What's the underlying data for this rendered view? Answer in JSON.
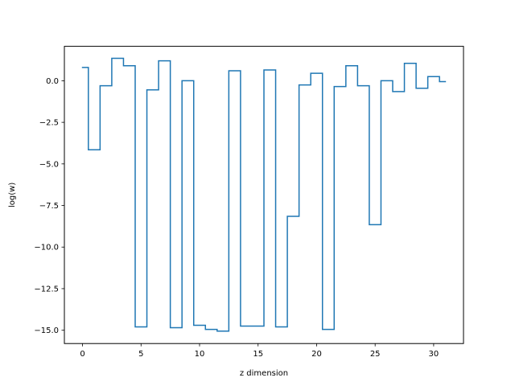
{
  "chart_data": {
    "type": "line",
    "drawstyle": "steps-mid",
    "title": "",
    "xlabel": "z dimension",
    "ylabel": "log(w)",
    "xlim": [
      -1.55,
      32.55
    ],
    "ylim": [
      -15.8,
      2.07
    ],
    "grid": false,
    "legend": "none",
    "x_ticks": [
      0,
      5,
      10,
      15,
      20,
      25,
      30
    ],
    "x_tick_labels": [
      "0",
      "5",
      "10",
      "15",
      "20",
      "25",
      "30"
    ],
    "y_ticks": [
      0.0,
      -2.5,
      -5.0,
      -7.5,
      -10.0,
      -12.5,
      -15.0
    ],
    "y_tick_labels": [
      "0.0",
      "−2.5",
      "−5.0",
      "−7.5",
      "−10.0",
      "−12.5",
      "−15.0"
    ],
    "series": [
      {
        "color": "#1f77b4",
        "x": [
          0,
          1,
          2,
          3,
          4,
          5,
          6,
          7,
          8,
          9,
          10,
          11,
          12,
          13,
          14,
          15,
          16,
          17,
          18,
          19,
          20,
          21,
          22,
          23,
          24,
          25,
          26,
          27,
          28,
          29,
          30,
          31
        ],
        "y": [
          0.8,
          -4.15,
          -0.3,
          1.35,
          0.9,
          -14.8,
          -0.55,
          1.2,
          -14.85,
          0.0,
          -14.7,
          -14.95,
          -15.05,
          0.6,
          -14.75,
          -14.75,
          0.65,
          -14.8,
          -8.15,
          -0.25,
          0.45,
          -14.95,
          -0.35,
          0.9,
          -0.3,
          -8.65,
          0.0,
          -0.65,
          1.05,
          -0.45,
          0.25,
          -0.05
        ]
      }
    ]
  }
}
